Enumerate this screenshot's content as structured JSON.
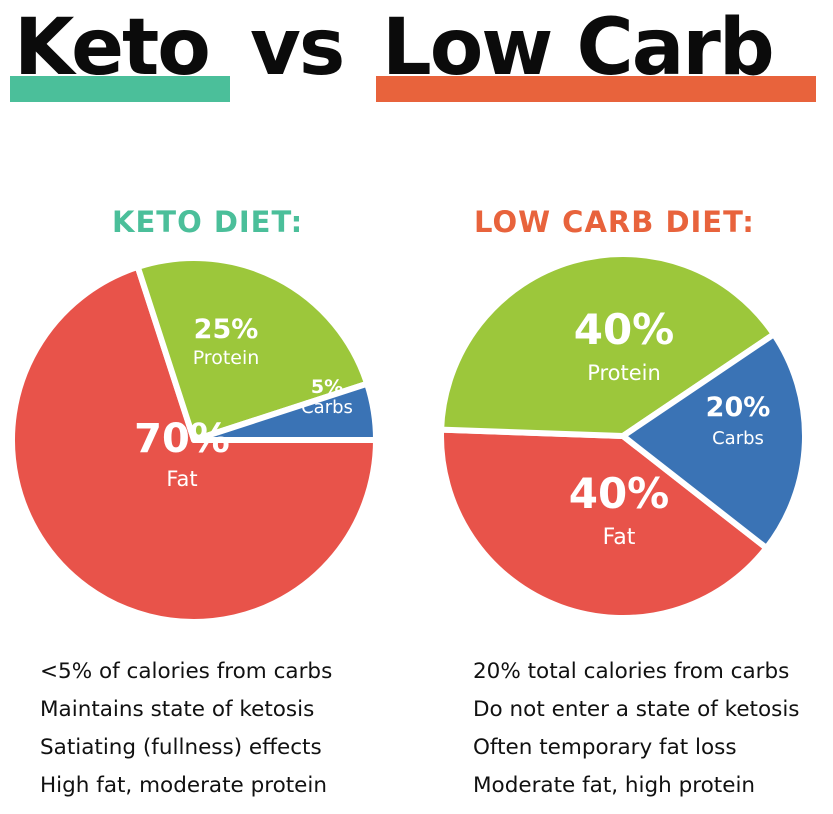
{
  "header": {
    "title_part1": "Keto",
    "title_part2": "vs",
    "title_part3": "Low Carb",
    "keto_color": "#4bbf9a",
    "low_carb_color": "#e8633c"
  },
  "chart_data": [
    {
      "type": "pie",
      "title": "KETO DIET:",
      "categories": [
        "Fat",
        "Protein",
        "Carbs"
      ],
      "values": [
        70,
        25,
        5
      ],
      "labels": [
        "70%",
        "25%",
        "5%"
      ],
      "colors": [
        "#e8534a",
        "#9cc73b",
        "#3a73b5"
      ]
    },
    {
      "type": "pie",
      "title": "LOW CARB DIET:",
      "categories": [
        "Fat",
        "Protein",
        "Carbs"
      ],
      "values": [
        40,
        40,
        20
      ],
      "labels": [
        "40%",
        "40%",
        "20%"
      ],
      "colors": [
        "#e8534a",
        "#9cc73b",
        "#3a73b5"
      ]
    }
  ],
  "keto_notes": [
    "<5% of calories from carbs",
    "Maintains state of ketosis",
    "Satiating (fullness) effects",
    "High fat, moderate protein"
  ],
  "low_carb_notes": [
    "20% total calories from carbs",
    "Do not enter a state of ketosis",
    "Often temporary fat loss",
    "Moderate fat, high protein"
  ]
}
